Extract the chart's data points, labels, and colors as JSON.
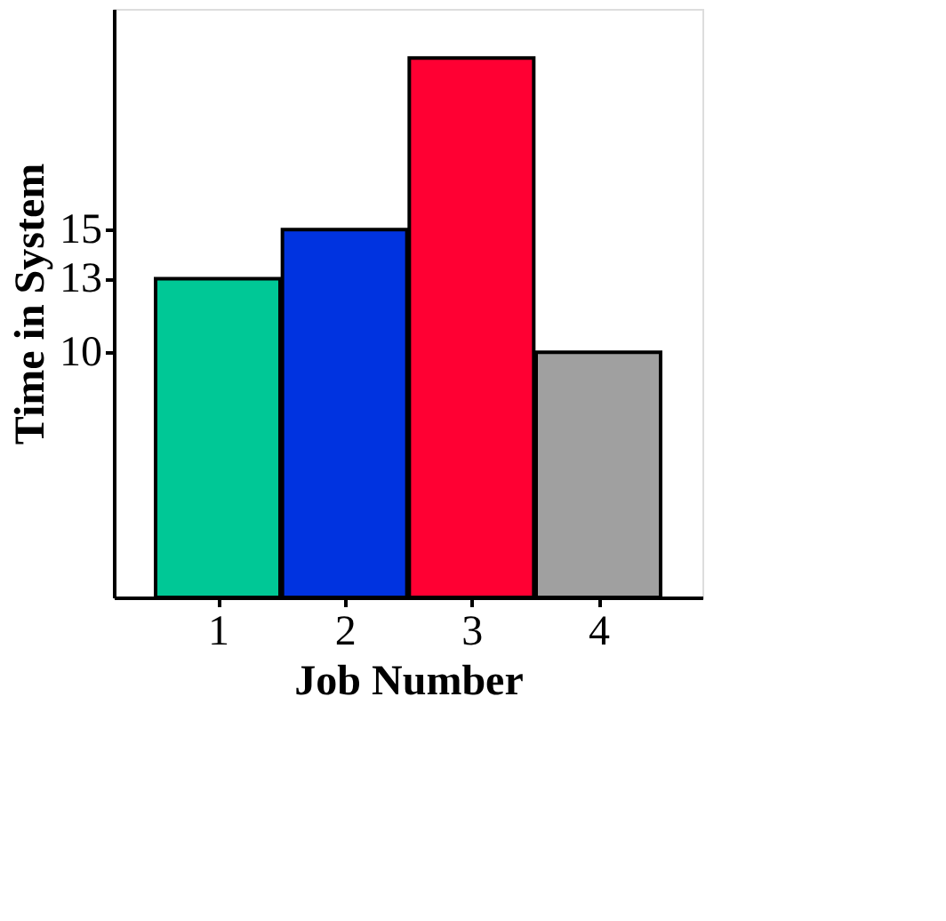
{
  "chart_data": {
    "type": "bar",
    "xlabel": "Job Number",
    "ylabel": "Time in System",
    "categories": [
      "1",
      "2",
      "3",
      "4"
    ],
    "values": [
      13,
      15,
      22,
      10
    ],
    "colors": [
      "#00c896",
      "#0033e0",
      "#ff0033",
      "#a0a0a0"
    ],
    "ylim": [
      0,
      24
    ],
    "yticks": [
      10,
      13,
      15
    ],
    "grid": false,
    "legend": false
  }
}
